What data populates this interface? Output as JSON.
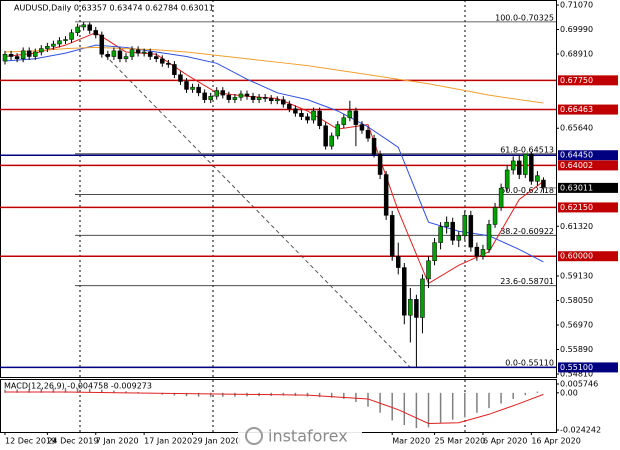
{
  "chart_data": {
    "type": "candlestick",
    "title": "AUDUSD,Daily 0.63357 0.63474 0.62784 0.63011",
    "up_color": "#00a000",
    "down_color": "#000000",
    "open": [
      0.686,
      0.689,
      0.688,
      0.687,
      0.6905,
      0.688,
      0.69,
      0.6915,
      0.6925,
      0.6935,
      0.695,
      0.6955,
      0.6985,
      0.701,
      0.702,
      0.6995,
      0.6975,
      0.689,
      0.688,
      0.6905,
      0.687,
      0.688,
      0.691,
      0.6895,
      0.69,
      0.688,
      0.687,
      0.685,
      0.6845,
      0.68,
      0.677,
      0.6735,
      0.6745,
      0.672,
      0.669,
      0.6705,
      0.673,
      0.671,
      0.669,
      0.67,
      0.6715,
      0.6705,
      0.669,
      0.67,
      0.6695,
      0.6685,
      0.669,
      0.667,
      0.665,
      0.663,
      0.6615,
      0.66,
      0.664,
      0.6575,
      0.6485,
      0.653,
      0.658,
      0.661,
      0.664,
      0.658,
      0.6555,
      0.652,
      0.645,
      0.636,
      0.618,
      0.6,
      0.595,
      0.574,
      0.581,
      0.573,
      0.59,
      0.598,
      0.606,
      0.613,
      0.615,
      0.607,
      0.609,
      0.618,
      0.604,
      0.6,
      0.603,
      0.614,
      0.6215,
      0.63,
      0.638,
      0.642,
      0.636,
      0.645,
      0.633,
      0.63357
    ],
    "high": [
      0.6905,
      0.6905,
      0.6895,
      0.692,
      0.692,
      0.6915,
      0.693,
      0.694,
      0.695,
      0.6965,
      0.697,
      0.7,
      0.7025,
      0.70325,
      0.703,
      0.701,
      0.699,
      0.6905,
      0.692,
      0.692,
      0.6895,
      0.6925,
      0.6925,
      0.6915,
      0.6915,
      0.6895,
      0.6885,
      0.6865,
      0.686,
      0.6815,
      0.6785,
      0.676,
      0.676,
      0.6735,
      0.672,
      0.6745,
      0.6745,
      0.6725,
      0.6715,
      0.673,
      0.673,
      0.672,
      0.6715,
      0.6715,
      0.671,
      0.6705,
      0.6705,
      0.6685,
      0.6665,
      0.6645,
      0.663,
      0.6655,
      0.6655,
      0.659,
      0.6545,
      0.6595,
      0.6625,
      0.6685,
      0.6655,
      0.6595,
      0.657,
      0.6535,
      0.6465,
      0.6375,
      0.62,
      0.606,
      0.597,
      0.586,
      0.583,
      0.592,
      0.6,
      0.608,
      0.615,
      0.6175,
      0.617,
      0.611,
      0.62,
      0.62,
      0.606,
      0.605,
      0.616,
      0.6235,
      0.632,
      0.64,
      0.644,
      0.6445,
      0.6451,
      0.646,
      0.6375,
      0.63474
    ],
    "low": [
      0.6845,
      0.6865,
      0.6855,
      0.6855,
      0.6865,
      0.6865,
      0.6885,
      0.69,
      0.691,
      0.692,
      0.6935,
      0.694,
      0.697,
      0.6995,
      0.698,
      0.696,
      0.6875,
      0.6865,
      0.6865,
      0.6855,
      0.6855,
      0.6865,
      0.688,
      0.688,
      0.6865,
      0.6855,
      0.6835,
      0.683,
      0.6785,
      0.6755,
      0.672,
      0.672,
      0.6705,
      0.6675,
      0.6675,
      0.669,
      0.6695,
      0.6675,
      0.6675,
      0.6685,
      0.669,
      0.6675,
      0.6675,
      0.668,
      0.667,
      0.667,
      0.6655,
      0.6635,
      0.6615,
      0.66,
      0.6585,
      0.6585,
      0.656,
      0.647,
      0.647,
      0.6515,
      0.6565,
      0.6595,
      0.6485,
      0.654,
      0.6505,
      0.6435,
      0.634,
      0.616,
      0.598,
      0.592,
      0.57,
      0.562,
      0.5511,
      0.566,
      0.586,
      0.596,
      0.603,
      0.61,
      0.605,
      0.604,
      0.607,
      0.602,
      0.598,
      0.5985,
      0.6015,
      0.6125,
      0.62,
      0.6285,
      0.636,
      0.634,
      0.6345,
      0.6315,
      0.631,
      0.62784
    ],
    "close": [
      0.689,
      0.688,
      0.687,
      0.6905,
      0.688,
      0.69,
      0.6915,
      0.6925,
      0.6935,
      0.695,
      0.6955,
      0.6985,
      0.701,
      0.702,
      0.6995,
      0.6975,
      0.689,
      0.688,
      0.6905,
      0.687,
      0.688,
      0.691,
      0.6895,
      0.69,
      0.688,
      0.687,
      0.685,
      0.6845,
      0.68,
      0.677,
      0.6735,
      0.6745,
      0.672,
      0.669,
      0.6705,
      0.673,
      0.671,
      0.669,
      0.67,
      0.6715,
      0.6705,
      0.669,
      0.67,
      0.6695,
      0.6685,
      0.669,
      0.667,
      0.665,
      0.663,
      0.6615,
      0.66,
      0.664,
      0.6575,
      0.6485,
      0.653,
      0.658,
      0.661,
      0.664,
      0.658,
      0.6555,
      0.652,
      0.645,
      0.636,
      0.618,
      0.6,
      0.595,
      0.574,
      0.581,
      0.573,
      0.59,
      0.598,
      0.606,
      0.613,
      0.615,
      0.607,
      0.609,
      0.618,
      0.604,
      0.6,
      0.603,
      0.614,
      0.6215,
      0.63,
      0.638,
      0.642,
      0.636,
      0.645,
      0.633,
      0.6355,
      0.63011
    ],
    "ylim": [
      0.5481,
      0.7107
    ],
    "yticks": [
      {
        "value": 0.7107,
        "label": "0.71070"
      },
      {
        "value": 0.6999,
        "label": "0.69990"
      },
      {
        "value": 0.6891,
        "label": "0.68910"
      },
      {
        "value": 0.6564,
        "label": "0.65640"
      },
      {
        "value": 0.6132,
        "label": "0.61320"
      },
      {
        "value": 0.5913,
        "label": "0.59130"
      },
      {
        "value": 0.5805,
        "label": "0.58050"
      },
      {
        "value": 0.5697,
        "label": "0.56970"
      },
      {
        "value": 0.5589,
        "label": "0.55890"
      },
      {
        "value": 0.5481,
        "label": "0.54810"
      }
    ],
    "xticks": [
      {
        "value": 0,
        "label": "12 Dec 2019"
      },
      {
        "value": 7,
        "label": "24 Dec 2019"
      },
      {
        "value": 15,
        "label": "7 Jan 2020"
      },
      {
        "value": 23,
        "label": "17 Jan 2020"
      },
      {
        "value": 31,
        "label": "29 Jan 2020"
      },
      {
        "value": 64,
        "label": "Mar 2020"
      },
      {
        "value": 71,
        "label": "25 Mar 2020"
      },
      {
        "value": 79,
        "label": "6 Apr 2020"
      },
      {
        "value": 87,
        "label": "16 Apr 2020"
      }
    ],
    "levels": [
      {
        "value": 0.6775,
        "label": "0.67750",
        "color": "#c00000"
      },
      {
        "value": 0.66463,
        "label": "0.66463",
        "color": "#c00000"
      },
      {
        "value": 0.6445,
        "label": "0.64450",
        "color": "#000080"
      },
      {
        "value": 0.64002,
        "label": "0.64002",
        "color": "#c00000"
      },
      {
        "value": 0.6215,
        "label": "0.62150",
        "color": "#c00000"
      },
      {
        "value": 0.6,
        "label": "0.60000",
        "color": "#c00000"
      },
      {
        "value": 0.551,
        "label": "0.55100",
        "color": "#000080"
      }
    ],
    "current_price": {
      "value": 0.63011,
      "label": "0.63011"
    },
    "fibonacci": [
      {
        "value": 0.70325,
        "label": "100.0-0.70325"
      },
      {
        "value": 0.64513,
        "label": "61.8-0.64513"
      },
      {
        "value": 0.62718,
        "label": "50.0-0.62718"
      },
      {
        "value": 0.60922,
        "label": "38.2-0.60922"
      },
      {
        "value": 0.58701,
        "label": "23.6-0.58701"
      },
      {
        "value": 0.5511,
        "label": "0.0-0.55110"
      }
    ],
    "lines": [
      {
        "color": "#e02020",
        "x": [
          0,
          5,
          10,
          15,
          20,
          25,
          30,
          35,
          40,
          45,
          50,
          55,
          60,
          65,
          70,
          75,
          80,
          85,
          89
        ],
        "values": [
          0.688,
          0.6895,
          0.693,
          0.6985,
          0.69,
          0.689,
          0.68,
          0.672,
          0.6705,
          0.6695,
          0.664,
          0.656,
          0.658,
          0.62,
          0.588,
          0.596,
          0.602,
          0.625,
          0.633
        ]
      },
      {
        "color": "#3050e0",
        "x": [
          0,
          5,
          10,
          15,
          20,
          25,
          30,
          35,
          40,
          45,
          50,
          55,
          60,
          65,
          70,
          75,
          80,
          85,
          89
        ],
        "values": [
          0.686,
          0.687,
          0.6895,
          0.693,
          0.692,
          0.69,
          0.688,
          0.685,
          0.678,
          0.672,
          0.669,
          0.664,
          0.657,
          0.648,
          0.615,
          0.611,
          0.609,
          0.603,
          0.5975
        ]
      },
      {
        "color": "#f0a030",
        "x": [
          0,
          5,
          10,
          15,
          20,
          25,
          30,
          35,
          40,
          45,
          50,
          55,
          60,
          65,
          70,
          75,
          80,
          85,
          89
        ],
        "values": [
          0.69,
          0.6905,
          0.6915,
          0.692,
          0.6915,
          0.691,
          0.69,
          0.6885,
          0.687,
          0.6855,
          0.684,
          0.682,
          0.68,
          0.678,
          0.676,
          0.6735,
          0.671,
          0.669,
          0.6675
        ]
      }
    ],
    "macd": {
      "label": "MACD(12,26,9) -0.004758 -0.009273",
      "ylim": [
        -0.024242,
        0.005746
      ],
      "yticks": [
        0.005746,
        {
          "value": 0,
          "label": "0.00"
        },
        -0.024242
      ],
      "histogram": {
        "color": "#808080",
        "x": [
          0,
          2,
          4,
          6,
          8,
          10,
          12,
          14,
          16,
          18,
          20,
          22,
          24,
          26,
          28,
          30,
          32,
          34,
          36,
          38,
          40,
          42,
          44,
          46,
          48,
          50,
          52,
          54,
          56,
          58,
          60,
          62,
          64,
          66,
          68,
          70,
          72,
          74,
          76,
          78,
          80,
          82,
          84,
          86,
          88
        ],
        "values": [
          0.002,
          0.0022,
          0.0025,
          0.0028,
          0.003,
          0.0032,
          0.003,
          0.0026,
          0.002,
          0.0015,
          0.001,
          0.0005,
          -0.0005,
          -0.0012,
          -0.0018,
          -0.0022,
          -0.0025,
          -0.0026,
          -0.0026,
          -0.0025,
          -0.0024,
          -0.0022,
          -0.002,
          -0.0018,
          -0.002,
          -0.0024,
          -0.0028,
          -0.0032,
          -0.004,
          -0.006,
          -0.009,
          -0.013,
          -0.018,
          -0.021,
          -0.023,
          -0.0225,
          -0.02,
          -0.0175,
          -0.016,
          -0.013,
          -0.01,
          -0.007,
          -0.004,
          -0.0015,
          0.0008
        ]
      },
      "signal": {
        "color": "#e02020",
        "x": [
          0,
          10,
          20,
          30,
          40,
          50,
          60,
          65,
          70,
          75,
          80,
          85,
          89
        ],
        "values": [
          0.0005,
          0.0005,
          0.0,
          -0.0005,
          -0.001,
          -0.0015,
          -0.004,
          -0.011,
          -0.02,
          -0.0195,
          -0.014,
          -0.007,
          -0.001
        ]
      }
    },
    "watermark": "instaforex"
  }
}
